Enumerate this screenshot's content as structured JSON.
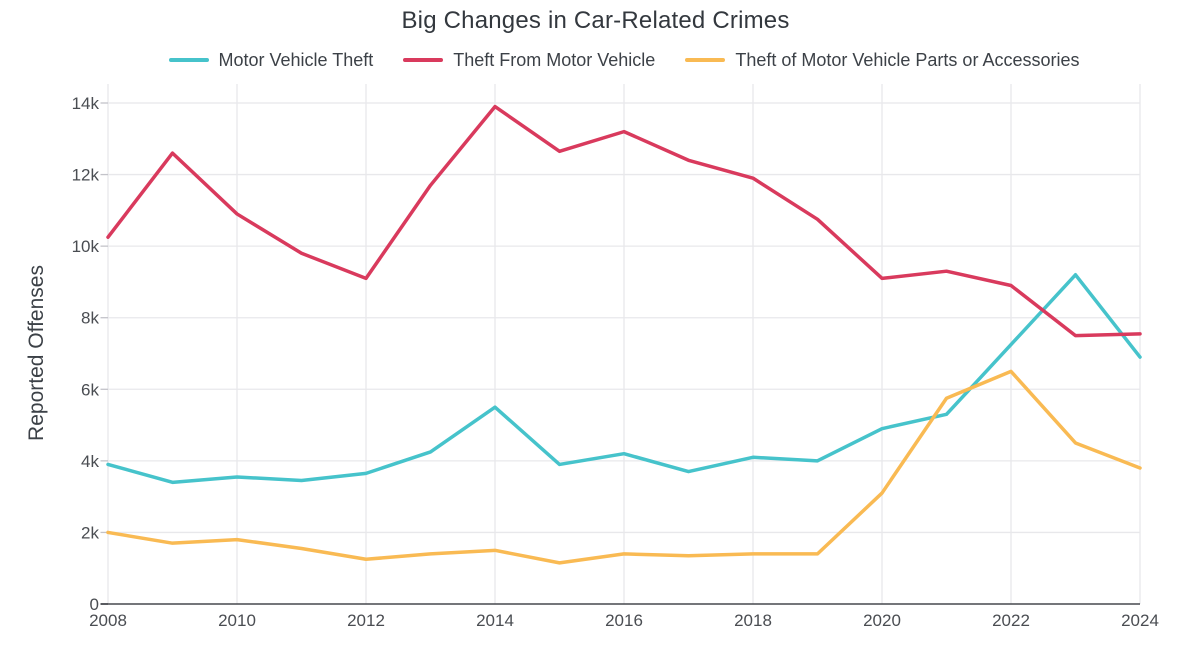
{
  "title": "Big Changes in Car-Related Crimes",
  "y_axis_title": "Reported Offenses",
  "legend": [
    {
      "label": "Motor Vehicle Theft",
      "color": "#46C3CB"
    },
    {
      "label": "Theft From Motor Vehicle",
      "color": "#D93A5D"
    },
    {
      "label": "Theft of Motor Vehicle Parts or Accessories",
      "color": "#F9BA53"
    }
  ],
  "colors": {
    "teal": "#46C3CB",
    "red": "#D93A5D",
    "yellow": "#F9BA53",
    "gridline": "#e8e8eb",
    "tick_mark": "#c3c3c9",
    "axis_line": "#47494e"
  },
  "chart_data": {
    "type": "line",
    "title": "Big Changes in Car-Related Crimes",
    "xlabel": "",
    "ylabel": "Reported Offenses",
    "x": [
      2008,
      2009,
      2010,
      2011,
      2012,
      2013,
      2014,
      2015,
      2016,
      2017,
      2018,
      2019,
      2020,
      2021,
      2022,
      2023,
      2024
    ],
    "series": [
      {
        "name": "Motor Vehicle Theft",
        "color": "#46C3CB",
        "values": [
          3900,
          3400,
          3550,
          3450,
          3650,
          4250,
          5500,
          3900,
          4200,
          3700,
          4100,
          4000,
          4900,
          5300,
          7250,
          9200,
          6900
        ]
      },
      {
        "name": "Theft From Motor Vehicle",
        "color": "#D93A5D",
        "values": [
          10250,
          12600,
          10900,
          9800,
          9100,
          11700,
          13900,
          12650,
          13200,
          12400,
          11900,
          10750,
          9100,
          9300,
          8900,
          7500,
          7550
        ]
      },
      {
        "name": "Theft of Motor Vehicle Parts or Accessories",
        "color": "#F9BA53",
        "values": [
          2000,
          1700,
          1800,
          1550,
          1250,
          1400,
          1500,
          1150,
          1400,
          1350,
          1400,
          1400,
          3100,
          5750,
          6500,
          4500,
          3800
        ]
      }
    ],
    "ylim": [
      0,
      14000
    ],
    "ytick_step": 2000,
    "ytick_labels": [
      "0",
      "2k",
      "4k",
      "6k",
      "8k",
      "10k",
      "12k",
      "14k"
    ],
    "xtick_years": [
      2008,
      2010,
      2012,
      2014,
      2016,
      2018,
      2020,
      2022,
      2024
    ],
    "xtick_labels": [
      "2008",
      "2010",
      "2012",
      "2014",
      "2016",
      "2018",
      "2020",
      "2022",
      "2024"
    ],
    "grid": true,
    "legend_position": "top"
  }
}
